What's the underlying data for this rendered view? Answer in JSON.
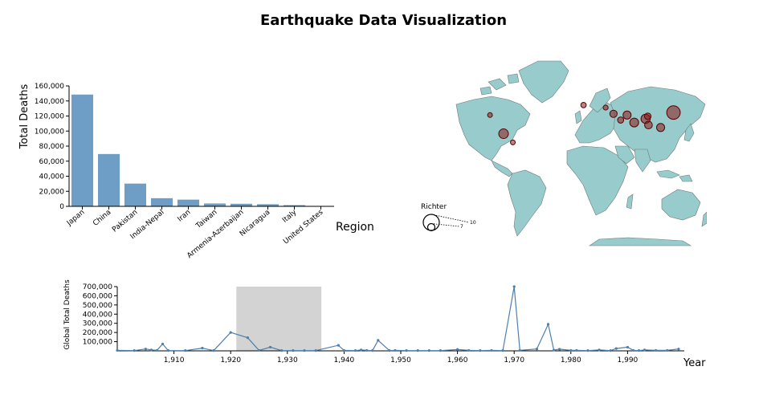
{
  "title": "Earthquake Data Visualization",
  "colors": {
    "bar": "#6e9ec6",
    "line": "#4a7fb0",
    "land": "#98cbcb",
    "quake": "#8b1a1a",
    "brush": "#d3d3d3"
  },
  "chart_data": [
    {
      "type": "bar",
      "title": "",
      "xlabel": "Region",
      "ylabel": "Total Deaths",
      "ylim": [
        0,
        160000
      ],
      "yticks": [
        "0",
        "20,000",
        "40,000",
        "60,000",
        "80,000",
        "100,000",
        "120,000",
        "140,000",
        "160,000"
      ],
      "categories": [
        "Japan",
        "China",
        "Pakistan",
        "India-Nepal",
        "Iran",
        "Taiwan",
        "Armenia-Azerbaijan",
        "Nicaragua",
        "Italy",
        "United States"
      ],
      "values": [
        148500,
        69500,
        30200,
        10800,
        8900,
        3800,
        3400,
        2800,
        1600,
        150
      ]
    },
    {
      "type": "scatter",
      "subtype": "map-bubbles",
      "legend_title": "Richter",
      "legend_values": [
        "10",
        "7"
      ],
      "points": [
        {
          "lon": -118,
          "lat": 34,
          "magnitude": 6.7
        },
        {
          "lon": -99,
          "lat": 19,
          "magnitude": 8.0
        },
        {
          "lon": -86,
          "lat": 12,
          "magnitude": 6.2
        },
        {
          "lon": 13,
          "lat": 42,
          "magnitude": 6.9
        },
        {
          "lon": 44,
          "lat": 40,
          "magnitude": 6.8
        },
        {
          "lon": 55,
          "lat": 35,
          "magnitude": 7.4
        },
        {
          "lon": 65,
          "lat": 30,
          "magnitude": 7.1
        },
        {
          "lon": 74,
          "lat": 34,
          "magnitude": 7.6
        },
        {
          "lon": 84,
          "lat": 28,
          "magnitude": 7.8
        },
        {
          "lon": 100,
          "lat": 31,
          "magnitude": 7.9
        },
        {
          "lon": 104,
          "lat": 26,
          "magnitude": 7.5
        },
        {
          "lon": 103,
          "lat": 33,
          "magnitude": 7.2
        },
        {
          "lon": 121,
          "lat": 24,
          "magnitude": 7.6
        },
        {
          "lon": 139,
          "lat": 36,
          "magnitude": 9.0
        }
      ]
    },
    {
      "type": "line",
      "title": "",
      "xlabel": "Year",
      "ylabel": "Global Total Deaths",
      "xlim": [
        1900,
        2000
      ],
      "ylim": [
        0,
        700000
      ],
      "xticks": [
        "1,910",
        "1,920",
        "1,930",
        "1,940",
        "1,950",
        "1,960",
        "1,970",
        "1,980",
        "1,990"
      ],
      "yticks": [
        "100,000",
        "200,000",
        "300,000",
        "400,000",
        "500,000",
        "600,000",
        "700,000"
      ],
      "brush_range": [
        1921,
        1936
      ],
      "x": [
        1900,
        1903,
        1905,
        1906,
        1907,
        1908,
        1909,
        1912,
        1915,
        1917,
        1920,
        1923,
        1925,
        1927,
        1929,
        1931,
        1933,
        1935,
        1939,
        1940,
        1942,
        1943,
        1944,
        1945,
        1946,
        1948,
        1949,
        1951,
        1953,
        1955,
        1957,
        1960,
        1962,
        1964,
        1966,
        1968,
        1970,
        1971,
        1974,
        1976,
        1977,
        1978,
        1980,
        1981,
        1983,
        1985,
        1987,
        1988,
        1990,
        1991,
        1992,
        1993,
        1995,
        1997,
        1999
      ],
      "y": [
        5000,
        3000,
        20000,
        10000,
        5000,
        75000,
        3000,
        3000,
        30000,
        3000,
        200000,
        143000,
        5000,
        40000,
        3000,
        3000,
        3000,
        3000,
        60000,
        5000,
        3000,
        10000,
        5000,
        3000,
        115000,
        3000,
        5000,
        3000,
        3000,
        3000,
        3000,
        15000,
        5000,
        3000,
        5000,
        3000,
        700000,
        5000,
        20000,
        290000,
        8000,
        18000,
        5000,
        5000,
        3000,
        10000,
        3000,
        25000,
        40000,
        5000,
        3000,
        10000,
        5000,
        5000,
        20000
      ]
    }
  ]
}
